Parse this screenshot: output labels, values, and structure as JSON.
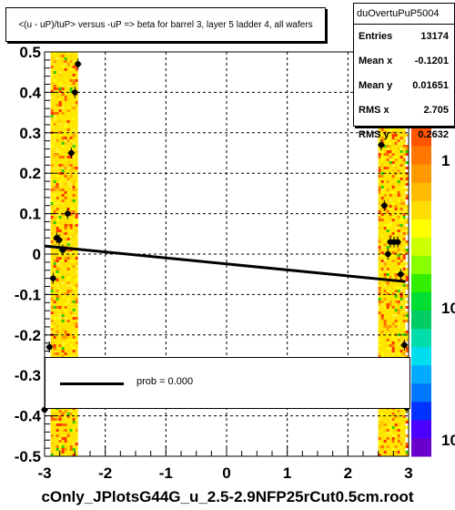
{
  "title": "<(u - uP)/tuP> versus  -uP => beta for barrel 3, layer 5 ladder 4, all wafers",
  "file_name": "cOnly_JPlotsG44G_u_2.5-2.9NFP25rCut0.5cm.root",
  "stats": {
    "name": "duOvertuPuP5004",
    "rows": [
      {
        "label": "Entries",
        "value": "13174"
      },
      {
        "label": "Mean x",
        "value": "-0.1201"
      },
      {
        "label": "Mean y",
        "value": "0.01651"
      },
      {
        "label": "RMS x",
        "value": "2.705"
      },
      {
        "label": "RMS y",
        "value": "0.2632"
      }
    ]
  },
  "legend": {
    "label": "prob = 0.000"
  },
  "palette_labels": [
    "1",
    "10",
    "10"
  ],
  "colors": {
    "fit_line": "#000000",
    "points": "#000000",
    "frame": "#000000"
  },
  "chart_data": {
    "type": "scatter",
    "xlim": [
      -3,
      3
    ],
    "ylim": [
      -0.5,
      0.5
    ],
    "x_ticks": [
      "-3",
      "-2",
      "-1",
      "0",
      "1",
      "2",
      "3"
    ],
    "y_ticks": [
      "-0.5",
      "-0.4",
      "-0.3",
      "-0.2",
      "-0.1",
      "0",
      "0.1",
      "0.2",
      "0.3",
      "0.4",
      "0.5"
    ],
    "grid": true,
    "density_bands": [
      {
        "x_min": -2.9,
        "x_max": -2.45
      },
      {
        "x_min": 2.5,
        "x_max": 2.95
      }
    ],
    "points": [
      {
        "x": -2.92,
        "y": -0.23
      },
      {
        "x": -2.86,
        "y": -0.06
      },
      {
        "x": -2.8,
        "y": 0.04
      },
      {
        "x": -2.76,
        "y": 0.035
      },
      {
        "x": -2.7,
        "y": 0.01
      },
      {
        "x": -2.62,
        "y": 0.1
      },
      {
        "x": -2.56,
        "y": 0.25
      },
      {
        "x": -2.5,
        "y": 0.4
      },
      {
        "x": -2.45,
        "y": 0.47
      },
      {
        "x": 2.55,
        "y": 0.27
      },
      {
        "x": 2.6,
        "y": 0.12
      },
      {
        "x": 2.66,
        "y": 0.0
      },
      {
        "x": 2.7,
        "y": 0.03
      },
      {
        "x": 2.76,
        "y": 0.03
      },
      {
        "x": 2.82,
        "y": 0.03
      },
      {
        "x": 2.87,
        "y": -0.05
      },
      {
        "x": 2.93,
        "y": -0.225
      },
      {
        "x": 2.97,
        "y": -0.38
      },
      {
        "x": -3.0,
        "y": -0.385
      }
    ],
    "fit_line": {
      "x": [
        -3,
        2.95
      ],
      "y": [
        0.02,
        -0.068
      ]
    }
  }
}
